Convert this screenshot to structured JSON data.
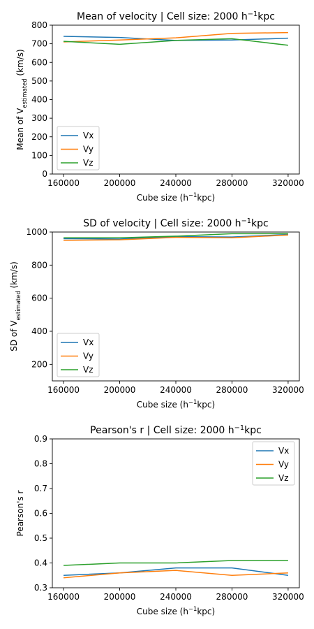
{
  "chart_data": [
    {
      "type": "line",
      "title": "Mean of velocity | Cell size: 2000 h⁻¹kpc",
      "title_main": "Mean of velocity | Cell size: 2000 h",
      "title_sup": "−1",
      "title_tail": "kpc",
      "xlabel": "Cube size (h⁻¹kpc)",
      "xlabel_main": "Cube size (h",
      "xlabel_sup": "−1",
      "xlabel_tail": "kpc)",
      "ylabel": "Mean of V_estimated (km/s)",
      "ylabel_main": "Mean of V",
      "ylabel_sub": "estimated",
      "ylabel_tail": " (km/s)",
      "x": [
        160000,
        200000,
        240000,
        280000,
        320000
      ],
      "xticks": [
        "160000",
        "200000",
        "240000",
        "280000",
        "320000"
      ],
      "xlim": [
        152000,
        328000
      ],
      "ylim": [
        0,
        800
      ],
      "yticks": [
        "0",
        "100",
        "200",
        "300",
        "400",
        "500",
        "600",
        "700",
        "800"
      ],
      "legend_position": "lower-left",
      "grid": false,
      "series": [
        {
          "name": "Vx",
          "color": "#1f77b4",
          "values": [
            740,
            734,
            718,
            720,
            730
          ]
        },
        {
          "name": "Vy",
          "color": "#ff7f0e",
          "values": [
            710,
            720,
            732,
            756,
            760
          ]
        },
        {
          "name": "Vz",
          "color": "#2ca02c",
          "values": [
            713,
            697,
            718,
            727,
            692
          ]
        }
      ]
    },
    {
      "type": "line",
      "title": "SD of velocity | Cell size: 2000 h⁻¹kpc",
      "title_main": "SD of velocity | Cell size: 2000 h",
      "title_sup": "−1",
      "title_tail": "kpc",
      "xlabel": "Cube size (h⁻¹kpc)",
      "xlabel_main": "Cube size (h",
      "xlabel_sup": "−1",
      "xlabel_tail": "kpc)",
      "ylabel": "SD of V_estimated (km/s)",
      "ylabel_main": "SD of V",
      "ylabel_sub": "estimated",
      "ylabel_tail": " (km/s)",
      "x": [
        160000,
        200000,
        240000,
        280000,
        320000
      ],
      "xticks": [
        "160000",
        "200000",
        "240000",
        "280000",
        "320000"
      ],
      "xlim": [
        152000,
        328000
      ],
      "ylim": [
        100,
        1000
      ],
      "yticks": [
        "200",
        "400",
        "600",
        "800",
        "1000"
      ],
      "legend_position": "lower-left",
      "grid": false,
      "series": [
        {
          "name": "Vx",
          "color": "#1f77b4",
          "values": [
            960,
            958,
            972,
            970,
            985
          ]
        },
        {
          "name": "Vy",
          "color": "#ff7f0e",
          "values": [
            950,
            953,
            968,
            965,
            982
          ]
        },
        {
          "name": "Vz",
          "color": "#2ca02c",
          "values": [
            965,
            965,
            975,
            990,
            990
          ]
        }
      ]
    },
    {
      "type": "line",
      "title": "Pearson's r | Cell size: 2000 h⁻¹kpc",
      "title_main": "Pearson's r | Cell size: 2000 h",
      "title_sup": "−1",
      "title_tail": "kpc",
      "xlabel": "Cube size (h⁻¹kpc)",
      "xlabel_main": "Cube size (h",
      "xlabel_sup": "−1",
      "xlabel_tail": "kpc)",
      "ylabel": "Pearson's r",
      "ylabel_main": "Pearson's r",
      "ylabel_sub": "",
      "ylabel_tail": "",
      "x": [
        160000,
        200000,
        240000,
        280000,
        320000
      ],
      "xticks": [
        "160000",
        "200000",
        "240000",
        "280000",
        "320000"
      ],
      "xlim": [
        152000,
        328000
      ],
      "ylim": [
        0.3,
        0.9
      ],
      "yticks": [
        "0.3",
        "0.4",
        "0.5",
        "0.6",
        "0.7",
        "0.8",
        "0.9"
      ],
      "legend_position": "upper-right",
      "grid": false,
      "series": [
        {
          "name": "Vx",
          "color": "#1f77b4",
          "values": [
            0.35,
            0.36,
            0.38,
            0.38,
            0.35
          ]
        },
        {
          "name": "Vy",
          "color": "#ff7f0e",
          "values": [
            0.34,
            0.36,
            0.37,
            0.35,
            0.36
          ]
        },
        {
          "name": "Vz",
          "color": "#2ca02c",
          "values": [
            0.39,
            0.4,
            0.4,
            0.41,
            0.41
          ]
        }
      ]
    }
  ]
}
